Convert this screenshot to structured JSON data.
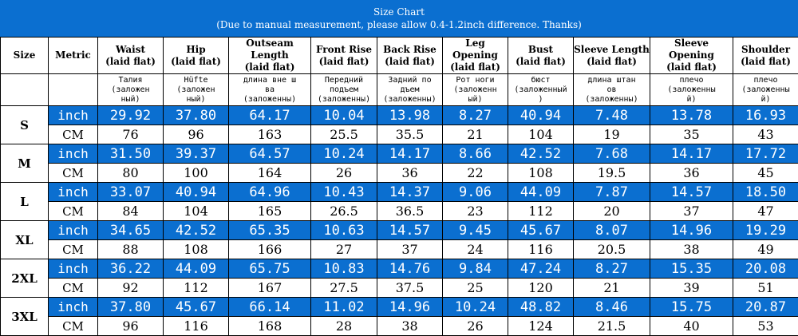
{
  "title": "Size Chart",
  "subtitle": "(Due to manual measurement, please allow 0.4-1.2inch difference. Thanks)",
  "colors": {
    "header_blue": "#0b6fd0",
    "border": "#000000",
    "text_on_blue": "#ffffff"
  },
  "headers": {
    "size": "Size",
    "metric": "Metric",
    "cols": [
      [
        "Waist",
        "(laid flat)"
      ],
      [
        "Hip",
        "(laid flat)"
      ],
      [
        "Outseam Length",
        "(laid flat)"
      ],
      [
        "Front Rise",
        "(laid flat)"
      ],
      [
        "Back Rise",
        "(laid flat)"
      ],
      [
        "Leg Opening",
        "(laid flat)"
      ],
      [
        "Bust",
        "(laid flat)"
      ],
      [
        "Sleeve Length",
        "(laid flat)"
      ],
      [
        "Sleeve Opening",
        "(laid flat)"
      ],
      [
        "Shoulder",
        "(laid flat)"
      ]
    ]
  },
  "russian": [
    [
      "Талия",
      "(заложен",
      "ный)"
    ],
    [
      "Hüfte",
      "(заложен",
      "ный)"
    ],
    [
      "длина вне ш",
      "ва",
      "(заложенны)"
    ],
    [
      "Передний",
      "подъем",
      "(заложенны)"
    ],
    [
      "Задний по",
      "дъем",
      "(заложенны)"
    ],
    [
      "Рот ноги",
      "(заложенн",
      "ый)"
    ],
    [
      "бюст",
      "(заложенный",
      ")"
    ],
    [
      "длина штан",
      "ов",
      "(заложенны)"
    ],
    [
      "плечо",
      "(заложенны",
      "й)"
    ],
    [
      "плечо",
      "(заложенны",
      "й)"
    ]
  ],
  "rows": [
    {
      "size": "S",
      "inch": [
        "29.92",
        "37.80",
        "64.17",
        "10.04",
        "13.98",
        "8.27",
        "40.94",
        "7.48",
        "13.78",
        "16.93"
      ],
      "cm": [
        "76",
        "96",
        "163",
        "25.5",
        "35.5",
        "21",
        "104",
        "19",
        "35",
        "43"
      ]
    },
    {
      "size": "M",
      "inch": [
        "31.50",
        "39.37",
        "64.57",
        "10.24",
        "14.17",
        "8.66",
        "42.52",
        "7.68",
        "14.17",
        "17.72"
      ],
      "cm": [
        "80",
        "100",
        "164",
        "26",
        "36",
        "22",
        "108",
        "19.5",
        "36",
        "45"
      ]
    },
    {
      "size": "L",
      "inch": [
        "33.07",
        "40.94",
        "64.96",
        "10.43",
        "14.37",
        "9.06",
        "44.09",
        "7.87",
        "14.57",
        "18.50"
      ],
      "cm": [
        "84",
        "104",
        "165",
        "26.5",
        "36.5",
        "23",
        "112",
        "20",
        "37",
        "47"
      ]
    },
    {
      "size": "XL",
      "inch": [
        "34.65",
        "42.52",
        "65.35",
        "10.63",
        "14.57",
        "9.45",
        "45.67",
        "8.07",
        "14.96",
        "19.29"
      ],
      "cm": [
        "88",
        "108",
        "166",
        "27",
        "37",
        "24",
        "116",
        "20.5",
        "38",
        "49"
      ]
    },
    {
      "size": "2XL",
      "inch": [
        "36.22",
        "44.09",
        "65.75",
        "10.83",
        "14.76",
        "9.84",
        "47.24",
        "8.27",
        "15.35",
        "20.08"
      ],
      "cm": [
        "92",
        "112",
        "167",
        "27.5",
        "37.5",
        "25",
        "120",
        "21",
        "39",
        "51"
      ]
    },
    {
      "size": "3XL",
      "inch": [
        "37.80",
        "45.67",
        "66.14",
        "11.02",
        "14.96",
        "10.24",
        "48.82",
        "8.46",
        "15.75",
        "20.87"
      ],
      "cm": [
        "96",
        "116",
        "168",
        "28",
        "38",
        "26",
        "124",
        "21.5",
        "40",
        "53"
      ]
    }
  ],
  "units": {
    "inch": "inch",
    "cm": "CM"
  }
}
